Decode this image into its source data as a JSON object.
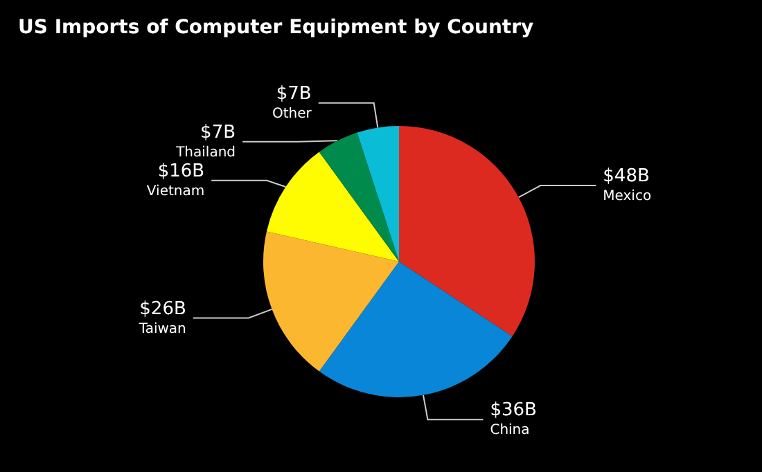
{
  "chart_data": {
    "type": "pie",
    "title": "US Imports of Computer Equipment by Country",
    "categories": [
      "Mexico",
      "China",
      "Taiwan",
      "Vietnam",
      "Thailand",
      "Other"
    ],
    "values": [
      48,
      36,
      26,
      16,
      7,
      7
    ],
    "value_labels": [
      "$48B",
      "$36B",
      "$26B",
      "$16B",
      "$7B",
      "$7B"
    ],
    "colors": [
      "#dd2a20",
      "#0a86d8",
      "#fbb730",
      "#fffb00",
      "#008a4b",
      "#0bbcd6"
    ],
    "legend": false
  }
}
